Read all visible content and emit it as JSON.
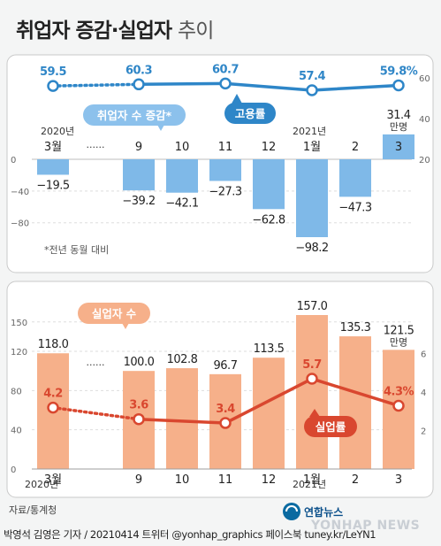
{
  "title": {
    "bold": "취업자 증감·실업자",
    "light": "추이"
  },
  "chart_data": [
    {
      "type": "bar",
      "series_label": "취업자 수 증감*",
      "unit": "만명",
      "categories": [
        "3월",
        "9",
        "10",
        "11",
        "12",
        "1월",
        "2",
        "3"
      ],
      "year_labels": [
        {
          "at": 0,
          "text": "2020년"
        },
        {
          "at": 5,
          "text": "2021년"
        }
      ],
      "values": [
        -19.5,
        -39.2,
        -42.1,
        -27.3,
        -62.8,
        -98.2,
        -47.3,
        31.4
      ],
      "value_labels": [
        "−19.5",
        "−39.2",
        "−42.1",
        "−27.3",
        "−62.8",
        "−98.2",
        "−47.3",
        "31.4"
      ],
      "ylim": [
        -100,
        40
      ],
      "yticks_left": [
        {
          "v": 0,
          "label": "0"
        },
        {
          "v": -40,
          "label": "−40"
        },
        {
          "v": -80,
          "label": "−80"
        }
      ],
      "footnote": "*전년 동월 대비",
      "rate": {
        "label": "고용률",
        "values": [
          59.5,
          60.3,
          60.7,
          57.4,
          59.8
        ],
        "value_labels": [
          "59.5",
          "60.3",
          "60.7",
          "57.4",
          "59.8%"
        ],
        "cat_index": [
          0,
          1,
          3,
          5,
          7
        ],
        "ylim": [
          20,
          60
        ],
        "yticks_right": [
          {
            "v": 60,
            "label": "60"
          },
          {
            "v": 40,
            "label": "40"
          },
          {
            "v": 20,
            "label": "20"
          }
        ]
      },
      "colors": {
        "bar": "#7fb9e8",
        "line": "#2e86c8"
      },
      "gap_marker": "······"
    },
    {
      "type": "bar",
      "series_label": "실업자 수",
      "unit": "만명",
      "categories": [
        "3월",
        "9",
        "10",
        "11",
        "12",
        "1월",
        "2",
        "3"
      ],
      "values": [
        118.0,
        100.0,
        102.8,
        96.7,
        113.5,
        157.0,
        135.3,
        121.5
      ],
      "value_labels": [
        "118.0",
        "100.0",
        "102.8",
        "96.7",
        "113.5",
        "157.0",
        "135.3",
        "121.5"
      ],
      "ylim": [
        0,
        160
      ],
      "yticks_left": [
        {
          "v": 150,
          "label": "150"
        },
        {
          "v": 120,
          "label": "120"
        },
        {
          "v": 80,
          "label": "80"
        },
        {
          "v": 40,
          "label": "40"
        },
        {
          "v": 0,
          "label": "0"
        }
      ],
      "rate": {
        "label": "실업률",
        "values": [
          4.2,
          3.6,
          3.4,
          5.7,
          4.3
        ],
        "value_labels": [
          "4.2",
          "3.6",
          "3.4",
          "5.7",
          "4.3%"
        ],
        "cat_index": [
          0,
          1,
          3,
          5,
          7
        ],
        "ylim": [
          0,
          8
        ],
        "yticks_right": [
          {
            "v": 6,
            "label": "6"
          },
          {
            "v": 4,
            "label": "4"
          },
          {
            "v": 2,
            "label": "2"
          }
        ]
      },
      "colors": {
        "bar": "#f6b08a",
        "line": "#d9472f"
      },
      "gap_marker": "······"
    }
  ],
  "x_axis": {
    "cats": [
      "3월",
      "9",
      "10",
      "11",
      "12",
      "1월",
      "2",
      "3"
    ],
    "year_2020": "2020년",
    "year_2021": "2021년"
  },
  "source": "자료/통계청",
  "credit": "박영석 김영은 기자 / 20210414  트위터 @yonhap_graphics  페이스북 tuney.kr/LeYN1",
  "logo_text": "연합뉴스",
  "watermark": "YONHAP NEWS"
}
